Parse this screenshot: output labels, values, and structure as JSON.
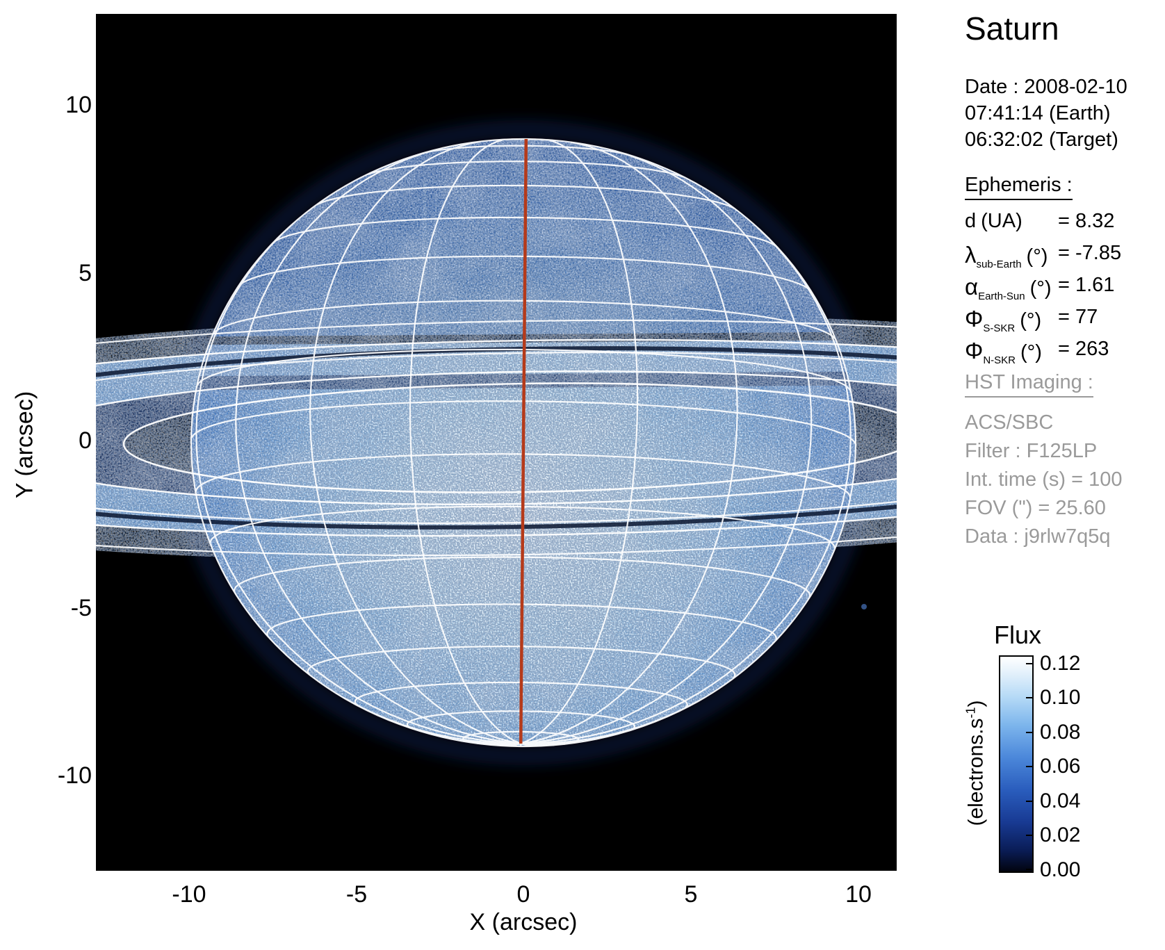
{
  "title": "Saturn",
  "info": {
    "date_line": "Date : 2008-02-10",
    "time_earth": "07:41:14 (Earth)",
    "time_target": "06:32:02 (Target)"
  },
  "ephemeris": {
    "heading": "Ephemeris :",
    "rows": [
      {
        "symbol": "d",
        "sub": "",
        "unit": "(UA)",
        "value": "= 8.32"
      },
      {
        "symbol": "λ",
        "sub": "sub-Earth",
        "unit": "(°)",
        "value": "= -7.85"
      },
      {
        "symbol": "α",
        "sub": "Earth-Sun",
        "unit": "(°)",
        "value": "= 1.61"
      },
      {
        "symbol": "Φ",
        "sub": "S-SKR",
        "unit": "(°)",
        "value": "= 77"
      },
      {
        "symbol": "Φ",
        "sub": "N-SKR",
        "unit": "(°)",
        "value": "= 263"
      }
    ]
  },
  "hst": {
    "heading": "HST Imaging :",
    "lines": [
      "ACS/SBC",
      "Filter : F125LP",
      "Int. time (s) = 100",
      "FOV (\") = 25.60",
      "Data : j9rlw7q5q"
    ]
  },
  "colorbar": {
    "title": "Flux",
    "unit_pre": "(electrons.s",
    "unit_sup": "-1",
    "unit_post": ")",
    "ticks": [
      "0.12",
      "0.10",
      "0.08",
      "0.06",
      "0.04",
      "0.02",
      "0.00"
    ]
  },
  "axes": {
    "xlabel": "X (arcsec)",
    "ylabel": "Y (arcsec)",
    "x_ticks": [
      "-10",
      "-5",
      "0",
      "5",
      "10"
    ],
    "y_ticks": [
      "10",
      "5",
      "0",
      "-5",
      "-10"
    ]
  },
  "chart_data": {
    "type": "heatmap",
    "title": "Saturn",
    "xlabel": "X (arcsec)",
    "ylabel": "Y (arcsec)",
    "x_range": [
      -12.8,
      11.2
    ],
    "y_range": [
      -12.8,
      12.8
    ],
    "grid": false,
    "description": "HST false-color UV image of Saturn: blue speckled planetary disk with white latitude-longitude graticule, red central meridian line, nearly edge-on rings crossing horizontally with dark ring shadow band on the northern hemisphere, south pole tilted toward viewer",
    "colorbar": {
      "label": "Flux (electrons.s-1)",
      "min": 0.0,
      "max": 0.12,
      "ticks": [
        0.12,
        0.1,
        0.08,
        0.06,
        0.04,
        0.02,
        0.0
      ],
      "colormap": "white-blue-black"
    },
    "observation": {
      "date": "2008-02-10",
      "time_earth": "07:41:14",
      "time_target": "06:32:02",
      "instrument": "ACS/SBC",
      "filter": "F125LP",
      "int_time_s": 100,
      "fov_arcsec": 25.6,
      "data_id": "j9rlw7q5q"
    },
    "ephemeris_values": {
      "d_UA": 8.32,
      "lambda_sub_Earth_deg": -7.85,
      "alpha_Earth_Sun_deg": 1.61,
      "phi_S_SKR_deg": 77,
      "phi_N_SKR_deg": 263
    }
  }
}
